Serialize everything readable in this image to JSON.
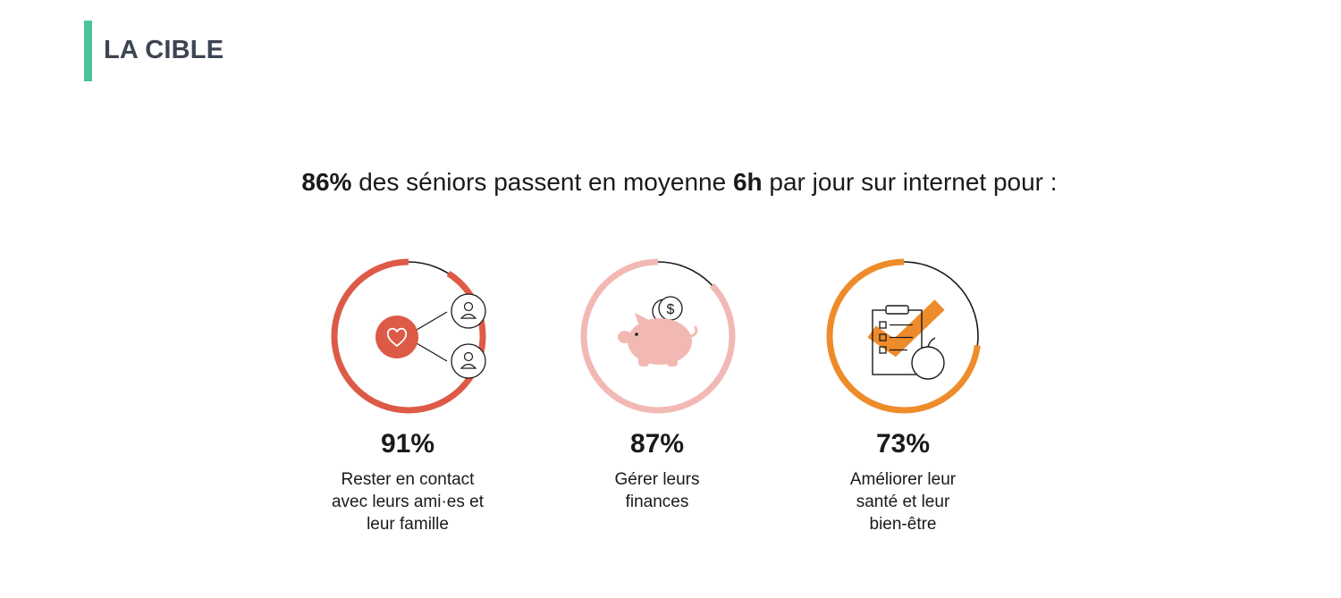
{
  "header": {
    "title": "LA CIBLE",
    "accent_color": "#4cc39a"
  },
  "headline": {
    "pct": "86%",
    "text_a": " des séniors passent en moyenne ",
    "hours": "6h",
    "text_b": " par jour sur internet pour :"
  },
  "stats": [
    {
      "value": 0.91,
      "pct": "91%",
      "label_lines": [
        "Rester en contact",
        "avec leurs ami·es et",
        "leur famille"
      ],
      "color": "#dd5a46",
      "icon": "social-heart-icon"
    },
    {
      "value": 0.87,
      "pct": "87%",
      "label_lines": [
        "Gérer leurs",
        "finances"
      ],
      "color": "#f2b9b4",
      "icon": "piggy-bank-icon"
    },
    {
      "value": 0.73,
      "pct": "73%",
      "label_lines": [
        "Améliorer leur",
        "santé et leur",
        "bien-être"
      ],
      "color": "#ee8b2a",
      "icon": "health-checklist-icon"
    }
  ]
}
